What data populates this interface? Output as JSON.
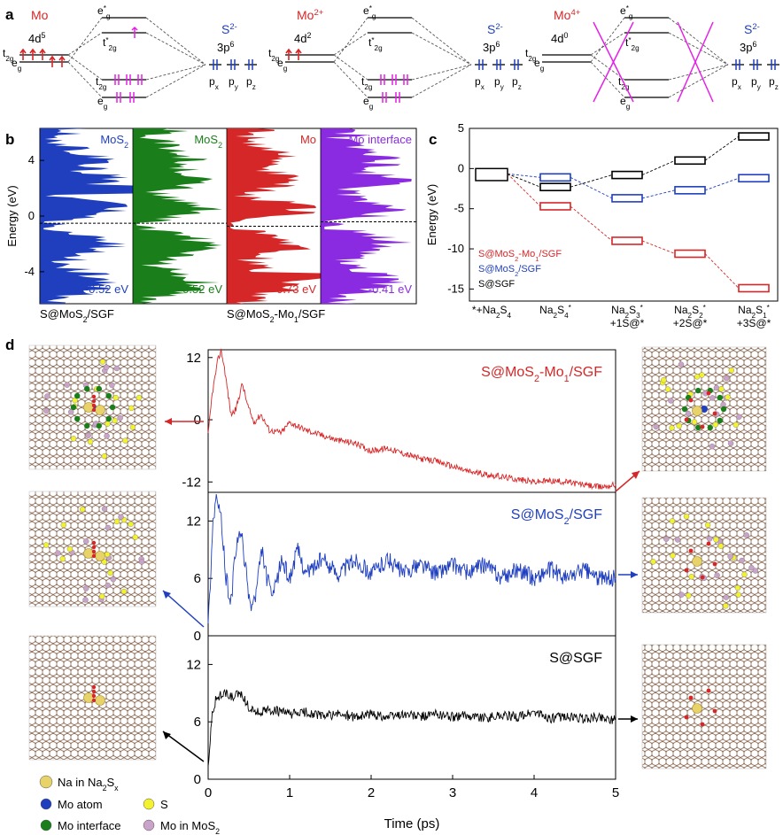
{
  "panel_labels": {
    "a": "a",
    "b": "b",
    "c": "c",
    "d": "d"
  },
  "colors": {
    "mo": "#d62728",
    "s": "#1f3fbf",
    "magenta": "#e61fe6",
    "green": "#1a7f1a",
    "purple": "#8a2be2",
    "black": "#000000",
    "red": "#d62728",
    "blue": "#1f3fbf"
  },
  "panel_a": {
    "diagrams": [
      {
        "metal": "Mo",
        "metal_config": "4d",
        "metal_config_sup": "5",
        "t2g": "t",
        "t2g_sub": "2g",
        "eg": "e",
        "eg_sub": "g",
        "eg_star": "e",
        "eg_star_sup": "*",
        "eg_star_sub": "g",
        "t2g_star": "t",
        "t2g_star_sup": "*",
        "t2g_star_sub": "2g",
        "ligand": "S",
        "ligand_sup": "2-",
        "ligand_config": "3p",
        "ligand_config_sup": "6",
        "px": "p",
        "px_sub": "x",
        "py": "p",
        "py_sub": "y",
        "pz": "p",
        "pz_sub": "z",
        "crossed": false
      },
      {
        "metal": "Mo",
        "metal_sup": "2+",
        "metal_config": "4d",
        "metal_config_sup": "2",
        "t2g": "t",
        "t2g_sub": "2g",
        "eg": "e",
        "eg_sub": "g",
        "eg_star": "e",
        "eg_star_sup": "*",
        "eg_star_sub": "g",
        "t2g_star": "t",
        "t2g_star_sup": "*",
        "t2g_star_sub": "2g",
        "ligand": "S",
        "ligand_sup": "2-",
        "ligand_config": "3p",
        "ligand_config_sup": "6",
        "px": "p",
        "px_sub": "x",
        "py": "p",
        "py_sub": "y",
        "pz": "p",
        "pz_sub": "z",
        "crossed": false
      },
      {
        "metal": "Mo",
        "metal_sup": "4+",
        "metal_config": "4d",
        "metal_config_sup": "0",
        "t2g": "t",
        "t2g_sub": "2g",
        "eg": "e",
        "eg_sub": "g",
        "eg_star": "e",
        "eg_star_sup": "*",
        "eg_star_sub": "g",
        "t2g_star": "t",
        "t2g_star_sup": "*",
        "t2g_star_sub": "2g",
        "ligand": "S",
        "ligand_sup": "2-",
        "ligand_config": "3p",
        "ligand_config_sup": "6",
        "px": "p",
        "px_sub": "x",
        "py": "p",
        "py_sub": "y",
        "pz": "p",
        "pz_sub": "z",
        "crossed": true
      }
    ]
  },
  "chart_data": [
    {
      "id": "b",
      "type": "area",
      "ylabel": "Energy (eV)",
      "ylim": [
        -6.3,
        6.3
      ],
      "yticks": [
        -4,
        0,
        4
      ],
      "fermi_level_dashed": true,
      "series": [
        {
          "name": "MoS",
          "name_sub": "2",
          "fermi": "-0.52 eV"
        },
        {
          "name": "MoS",
          "name_sub": "2",
          "fermi": "-0.52 eV"
        },
        {
          "name": "Mo",
          "fermi": "-0.73 eV"
        },
        {
          "name": "Mo interface",
          "fermi": "-0.41 eV"
        }
      ],
      "bottom_labels": [
        {
          "text": "S@MoS",
          "sub": "2",
          "after": "/SGF"
        },
        {
          "text": "S@MoS",
          "sub": "2",
          "after": "-Mo",
          "sub2": "1",
          "after2": "/SGF"
        }
      ]
    },
    {
      "id": "c",
      "type": "line",
      "ylabel": "Energy (eV)",
      "ylim": [
        -16.5,
        5
      ],
      "yticks": [
        5,
        0,
        -5,
        -10,
        -15
      ],
      "categories": [
        {
          "l1": "*+Na",
          "l1_sub": "2",
          "l1_after": "S",
          "l1_sub2": "4",
          "l2": ""
        },
        {
          "l1": "Na",
          "l1_sub": "2",
          "l1_after": "S",
          "l1_sub2": "4",
          "l1_sup": "*",
          "l2": ""
        },
        {
          "l1": "Na",
          "l1_sub": "2",
          "l1_after": "S",
          "l1_sub2": "3",
          "l1_sup": "*",
          "l2": "+1S@*"
        },
        {
          "l1": "Na",
          "l1_sub": "2",
          "l1_after": "S",
          "l1_sub2": "2",
          "l1_sup": "*",
          "l2": "+2S@*"
        },
        {
          "l1": "Na",
          "l1_sub": "2",
          "l1_after": "S",
          "l1_sub2": "1",
          "l1_sup": "*",
          "l2": "+3S@*"
        }
      ],
      "series": [
        {
          "name": "S@MoS",
          "name_sub": "2",
          "name_after": "-Mo",
          "name_sub2": "1",
          "name_after2": "/SGF",
          "color": "#d62728",
          "values": [
            0,
            -4.7,
            -9.0,
            -10.6,
            -14.9
          ]
        },
        {
          "name": "S@MoS",
          "name_sub": "2",
          "name_after": "/SGF",
          "color": "#1f3fbf",
          "values": [
            0,
            -1.1,
            -3.7,
            -2.7,
            -1.2
          ]
        },
        {
          "name": "S@SGF",
          "color": "#000000",
          "values": [
            0,
            -2.3,
            -0.8,
            1.0,
            4.0
          ]
        }
      ],
      "common_start_values": [
        0,
        -1.5
      ]
    },
    {
      "id": "d",
      "type": "line",
      "xlabel": "Time (ps)",
      "xlim": [
        0,
        5
      ],
      "xticks": [
        0,
        1,
        2,
        3,
        4,
        5
      ],
      "panels": [
        {
          "name": "S@MoS",
          "name_sub": "2",
          "name_after": "-Mo",
          "name_sub2": "1",
          "name_after2": "/SGF",
          "color": "#d62728",
          "ylim": [
            -14,
            13.5
          ],
          "yticks": [
            12,
            0,
            -12
          ],
          "points": [
            [
              0,
              -3
            ],
            [
              0.05,
              5
            ],
            [
              0.12,
              11.5
            ],
            [
              0.16,
              13.3
            ],
            [
              0.2,
              10
            ],
            [
              0.28,
              1
            ],
            [
              0.34,
              2
            ],
            [
              0.42,
              7
            ],
            [
              0.48,
              3
            ],
            [
              0.56,
              -0.5
            ],
            [
              0.65,
              1
            ],
            [
              0.75,
              -2
            ],
            [
              0.9,
              -2.5
            ],
            [
              1.0,
              -0.5
            ],
            [
              1.2,
              -2
            ],
            [
              1.4,
              -3
            ],
            [
              1.6,
              -4
            ],
            [
              1.8,
              -4.5
            ],
            [
              2.0,
              -6
            ],
            [
              2.2,
              -5.5
            ],
            [
              2.4,
              -6.5
            ],
            [
              2.6,
              -7.5
            ],
            [
              2.8,
              -8
            ],
            [
              3.0,
              -9
            ],
            [
              3.2,
              -10
            ],
            [
              3.4,
              -10.5
            ],
            [
              3.6,
              -11
            ],
            [
              3.8,
              -11.5
            ],
            [
              4.0,
              -12
            ],
            [
              4.2,
              -11.8
            ],
            [
              4.4,
              -12
            ],
            [
              4.6,
              -12.5
            ],
            [
              4.8,
              -13
            ],
            [
              5.0,
              -12.5
            ]
          ]
        },
        {
          "name": "S@MoS",
          "name_sub": "2",
          "name_after": "/SGF",
          "color": "#1f3fbf",
          "ylim": [
            0,
            15
          ],
          "yticks": [
            0,
            6,
            12
          ],
          "points": [
            [
              0,
              1
            ],
            [
              0.06,
              12
            ],
            [
              0.1,
              14.5
            ],
            [
              0.16,
              12
            ],
            [
              0.22,
              6
            ],
            [
              0.28,
              3.5
            ],
            [
              0.34,
              9
            ],
            [
              0.4,
              11
            ],
            [
              0.46,
              7
            ],
            [
              0.52,
              3
            ],
            [
              0.58,
              4
            ],
            [
              0.66,
              9
            ],
            [
              0.72,
              6
            ],
            [
              0.8,
              4
            ],
            [
              0.9,
              8
            ],
            [
              1.0,
              6
            ],
            [
              1.1,
              9
            ],
            [
              1.2,
              6.5
            ],
            [
              1.4,
              8
            ],
            [
              1.6,
              6.5
            ],
            [
              1.8,
              8
            ],
            [
              2.0,
              6.5
            ],
            [
              2.2,
              8
            ],
            [
              2.4,
              6.5
            ],
            [
              2.6,
              7.5
            ],
            [
              2.8,
              6.5
            ],
            [
              3.0,
              7.5
            ],
            [
              3.2,
              6.5
            ],
            [
              3.4,
              7.5
            ],
            [
              3.6,
              6
            ],
            [
              3.8,
              7
            ],
            [
              4.0,
              6
            ],
            [
              4.2,
              7
            ],
            [
              4.4,
              6
            ],
            [
              4.6,
              7
            ],
            [
              4.8,
              6
            ],
            [
              5.0,
              6
            ]
          ]
        },
        {
          "name": "S@SGF",
          "color": "#000000",
          "ylim": [
            0,
            15
          ],
          "yticks": [
            0,
            6,
            12
          ],
          "points": [
            [
              0,
              1.5
            ],
            [
              0.05,
              7
            ],
            [
              0.1,
              8.5
            ],
            [
              0.2,
              9
            ],
            [
              0.3,
              8.5
            ],
            [
              0.4,
              9
            ],
            [
              0.5,
              7.5
            ],
            [
              0.6,
              7
            ],
            [
              0.8,
              7.2
            ],
            [
              1.0,
              6.8
            ],
            [
              1.2,
              7
            ],
            [
              1.4,
              6.6
            ],
            [
              1.6,
              6.8
            ],
            [
              1.8,
              6.5
            ],
            [
              2.0,
              6.8
            ],
            [
              2.2,
              6.5
            ],
            [
              2.4,
              6.8
            ],
            [
              2.6,
              6.5
            ],
            [
              2.8,
              6.8
            ],
            [
              3.0,
              6.5
            ],
            [
              3.2,
              6.7
            ],
            [
              3.4,
              6.4
            ],
            [
              3.6,
              6.7
            ],
            [
              3.8,
              6.5
            ],
            [
              4.0,
              7
            ],
            [
              4.2,
              6.3
            ],
            [
              4.4,
              6.6
            ],
            [
              4.6,
              6.3
            ],
            [
              4.8,
              6.5
            ],
            [
              5.0,
              6.2
            ]
          ]
        }
      ]
    }
  ],
  "legend_d": [
    {
      "text": "Na in Na",
      "sub": "2",
      "after": "S",
      "sub2": "x",
      "color": "#e8d36a"
    },
    {
      "text": "Mo atom",
      "color": "#1f3fbf"
    },
    {
      "text": "S",
      "color": "#f2f22e"
    },
    {
      "text": "Mo interface",
      "color": "#1a7f1a"
    },
    {
      "text": "Mo in MoS",
      "sub": "2",
      "color": "#c9a3c9"
    }
  ]
}
